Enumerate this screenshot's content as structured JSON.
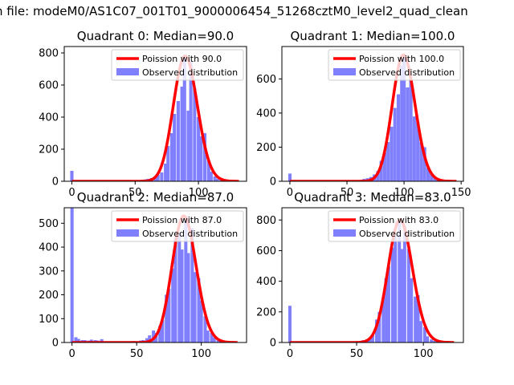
{
  "figure": {
    "suptitle": "n file: modeM0/AS1C07_001T01_9000006454_51268cztM0_level2_quad_clean"
  },
  "colors": {
    "hist": "#8080ff",
    "curve": "#ff0000",
    "axes": "#000000"
  },
  "chart_data": [
    {
      "type": "bar",
      "title": "Quadrant 0: Median=90.0",
      "xlim": [
        -6,
        138
      ],
      "ylim": [
        0,
        840
      ],
      "xticks": [
        0,
        50,
        100
      ],
      "yticks": [
        0,
        200,
        400,
        600,
        800
      ],
      "legend": {
        "placement": "top-right",
        "entries": [
          "Poission with 90.0",
          "Observed distribution"
        ]
      },
      "poisson_mean": 90.0,
      "bin_width": 2.6,
      "bins": [
        {
          "x": 0,
          "y": 65
        },
        {
          "x": 52,
          "y": 4
        },
        {
          "x": 55,
          "y": 8
        },
        {
          "x": 58,
          "y": 12
        },
        {
          "x": 60,
          "y": 15
        },
        {
          "x": 63,
          "y": 20
        },
        {
          "x": 66,
          "y": 30
        },
        {
          "x": 68,
          "y": 40
        },
        {
          "x": 71,
          "y": 55
        },
        {
          "x": 74,
          "y": 110
        },
        {
          "x": 76,
          "y": 220
        },
        {
          "x": 79,
          "y": 300
        },
        {
          "x": 81,
          "y": 420
        },
        {
          "x": 84,
          "y": 500
        },
        {
          "x": 87,
          "y": 590
        },
        {
          "x": 89,
          "y": 780
        },
        {
          "x": 92,
          "y": 440
        },
        {
          "x": 94,
          "y": 750
        },
        {
          "x": 97,
          "y": 580
        },
        {
          "x": 100,
          "y": 400
        },
        {
          "x": 102,
          "y": 280
        },
        {
          "x": 105,
          "y": 300
        },
        {
          "x": 108,
          "y": 130
        },
        {
          "x": 110,
          "y": 60
        },
        {
          "x": 113,
          "y": 30
        },
        {
          "x": 115,
          "y": 15
        },
        {
          "x": 118,
          "y": 8
        },
        {
          "x": 121,
          "y": 5
        }
      ],
      "curve_range": [
        0,
        132
      ]
    },
    {
      "type": "bar",
      "title": "Quadrant 1: Median=100.0",
      "xlim": [
        -7,
        152
      ],
      "ylim": [
        0,
        790
      ],
      "xticks": [
        0,
        50,
        100,
        150
      ],
      "yticks": [
        0,
        200,
        400,
        600
      ],
      "legend": {
        "placement": "top-right",
        "entries": [
          "Poission with 100.0",
          "Observed distribution"
        ]
      },
      "poisson_mean": 100.0,
      "bin_width": 2.9,
      "bins": [
        {
          "x": 0,
          "y": 45
        },
        {
          "x": 59,
          "y": 4
        },
        {
          "x": 62,
          "y": 8
        },
        {
          "x": 65,
          "y": 14
        },
        {
          "x": 68,
          "y": 18
        },
        {
          "x": 71,
          "y": 25
        },
        {
          "x": 74,
          "y": 40
        },
        {
          "x": 77,
          "y": 60
        },
        {
          "x": 80,
          "y": 120
        },
        {
          "x": 83,
          "y": 170
        },
        {
          "x": 86,
          "y": 230
        },
        {
          "x": 89,
          "y": 320
        },
        {
          "x": 92,
          "y": 430
        },
        {
          "x": 95,
          "y": 510
        },
        {
          "x": 98,
          "y": 680
        },
        {
          "x": 100,
          "y": 740
        },
        {
          "x": 103,
          "y": 550
        },
        {
          "x": 106,
          "y": 600
        },
        {
          "x": 109,
          "y": 380
        },
        {
          "x": 112,
          "y": 350
        },
        {
          "x": 115,
          "y": 230
        },
        {
          "x": 118,
          "y": 200
        },
        {
          "x": 121,
          "y": 80
        },
        {
          "x": 124,
          "y": 45
        },
        {
          "x": 127,
          "y": 25
        },
        {
          "x": 130,
          "y": 15
        },
        {
          "x": 133,
          "y": 8
        },
        {
          "x": 136,
          "y": 4
        }
      ],
      "curve_range": [
        0,
        146
      ]
    },
    {
      "type": "bar",
      "title": "Quadrant 2: Median=87.0",
      "xlim": [
        -6,
        135
      ],
      "ylim": [
        0,
        565
      ],
      "xticks": [
        0,
        50,
        100
      ],
      "yticks": [
        0,
        100,
        200,
        300,
        400,
        500
      ],
      "legend": {
        "placement": "top-right",
        "entries": [
          "Poission with 87.0",
          "Observed distribution"
        ]
      },
      "poisson_mean": 87.0,
      "bin_width": 2.5,
      "bins": [
        {
          "x": 0,
          "y": 565
        },
        {
          "x": 3,
          "y": 22
        },
        {
          "x": 5,
          "y": 15
        },
        {
          "x": 8,
          "y": 10
        },
        {
          "x": 10,
          "y": 10
        },
        {
          "x": 13,
          "y": 8
        },
        {
          "x": 15,
          "y": 12
        },
        {
          "x": 18,
          "y": 10
        },
        {
          "x": 20,
          "y": 8
        },
        {
          "x": 23,
          "y": 14
        },
        {
          "x": 26,
          "y": 5
        },
        {
          "x": 30,
          "y": 4
        },
        {
          "x": 38,
          "y": 4
        },
        {
          "x": 45,
          "y": 5
        },
        {
          "x": 48,
          "y": 6
        },
        {
          "x": 53,
          "y": 8
        },
        {
          "x": 55,
          "y": 10
        },
        {
          "x": 58,
          "y": 18
        },
        {
          "x": 60,
          "y": 30
        },
        {
          "x": 63,
          "y": 50
        },
        {
          "x": 65,
          "y": 40
        },
        {
          "x": 68,
          "y": 70
        },
        {
          "x": 70,
          "y": 95
        },
        {
          "x": 73,
          "y": 200
        },
        {
          "x": 75,
          "y": 225
        },
        {
          "x": 78,
          "y": 310
        },
        {
          "x": 80,
          "y": 440
        },
        {
          "x": 83,
          "y": 460
        },
        {
          "x": 85,
          "y": 390
        },
        {
          "x": 88,
          "y": 530
        },
        {
          "x": 90,
          "y": 375
        },
        {
          "x": 93,
          "y": 480
        },
        {
          "x": 95,
          "y": 295
        },
        {
          "x": 98,
          "y": 270
        },
        {
          "x": 100,
          "y": 175
        },
        {
          "x": 103,
          "y": 110
        },
        {
          "x": 105,
          "y": 50
        },
        {
          "x": 108,
          "y": 40
        },
        {
          "x": 110,
          "y": 20
        },
        {
          "x": 113,
          "y": 10
        },
        {
          "x": 115,
          "y": 5
        }
      ],
      "curve_range": [
        0,
        128
      ]
    },
    {
      "type": "bar",
      "title": "Quadrant 3: Median=83.0",
      "xlim": [
        -6,
        130
      ],
      "ylim": [
        0,
        880
      ],
      "xticks": [
        0,
        50,
        100
      ],
      "yticks": [
        0,
        200,
        400,
        600,
        800
      ],
      "legend": {
        "placement": "top-right",
        "entries": [
          "Poission with 83.0",
          "Observed distribution"
        ]
      },
      "poisson_mean": 83.0,
      "bin_width": 2.4,
      "bins": [
        {
          "x": 0,
          "y": 240
        },
        {
          "x": 48,
          "y": 4
        },
        {
          "x": 50,
          "y": 6
        },
        {
          "x": 53,
          "y": 10
        },
        {
          "x": 55,
          "y": 15
        },
        {
          "x": 58,
          "y": 22
        },
        {
          "x": 60,
          "y": 30
        },
        {
          "x": 62,
          "y": 50
        },
        {
          "x": 65,
          "y": 150
        },
        {
          "x": 67,
          "y": 200
        },
        {
          "x": 70,
          "y": 280
        },
        {
          "x": 72,
          "y": 420
        },
        {
          "x": 74,
          "y": 500
        },
        {
          "x": 77,
          "y": 620
        },
        {
          "x": 79,
          "y": 700
        },
        {
          "x": 82,
          "y": 800
        },
        {
          "x": 84,
          "y": 610
        },
        {
          "x": 86,
          "y": 760
        },
        {
          "x": 89,
          "y": 610
        },
        {
          "x": 91,
          "y": 420
        },
        {
          "x": 94,
          "y": 300
        },
        {
          "x": 96,
          "y": 310
        },
        {
          "x": 98,
          "y": 140
        },
        {
          "x": 101,
          "y": 100
        },
        {
          "x": 103,
          "y": 40
        },
        {
          "x": 106,
          "y": 20
        },
        {
          "x": 108,
          "y": 10
        },
        {
          "x": 110,
          "y": 5
        }
      ],
      "curve_range": [
        0,
        123
      ]
    }
  ]
}
